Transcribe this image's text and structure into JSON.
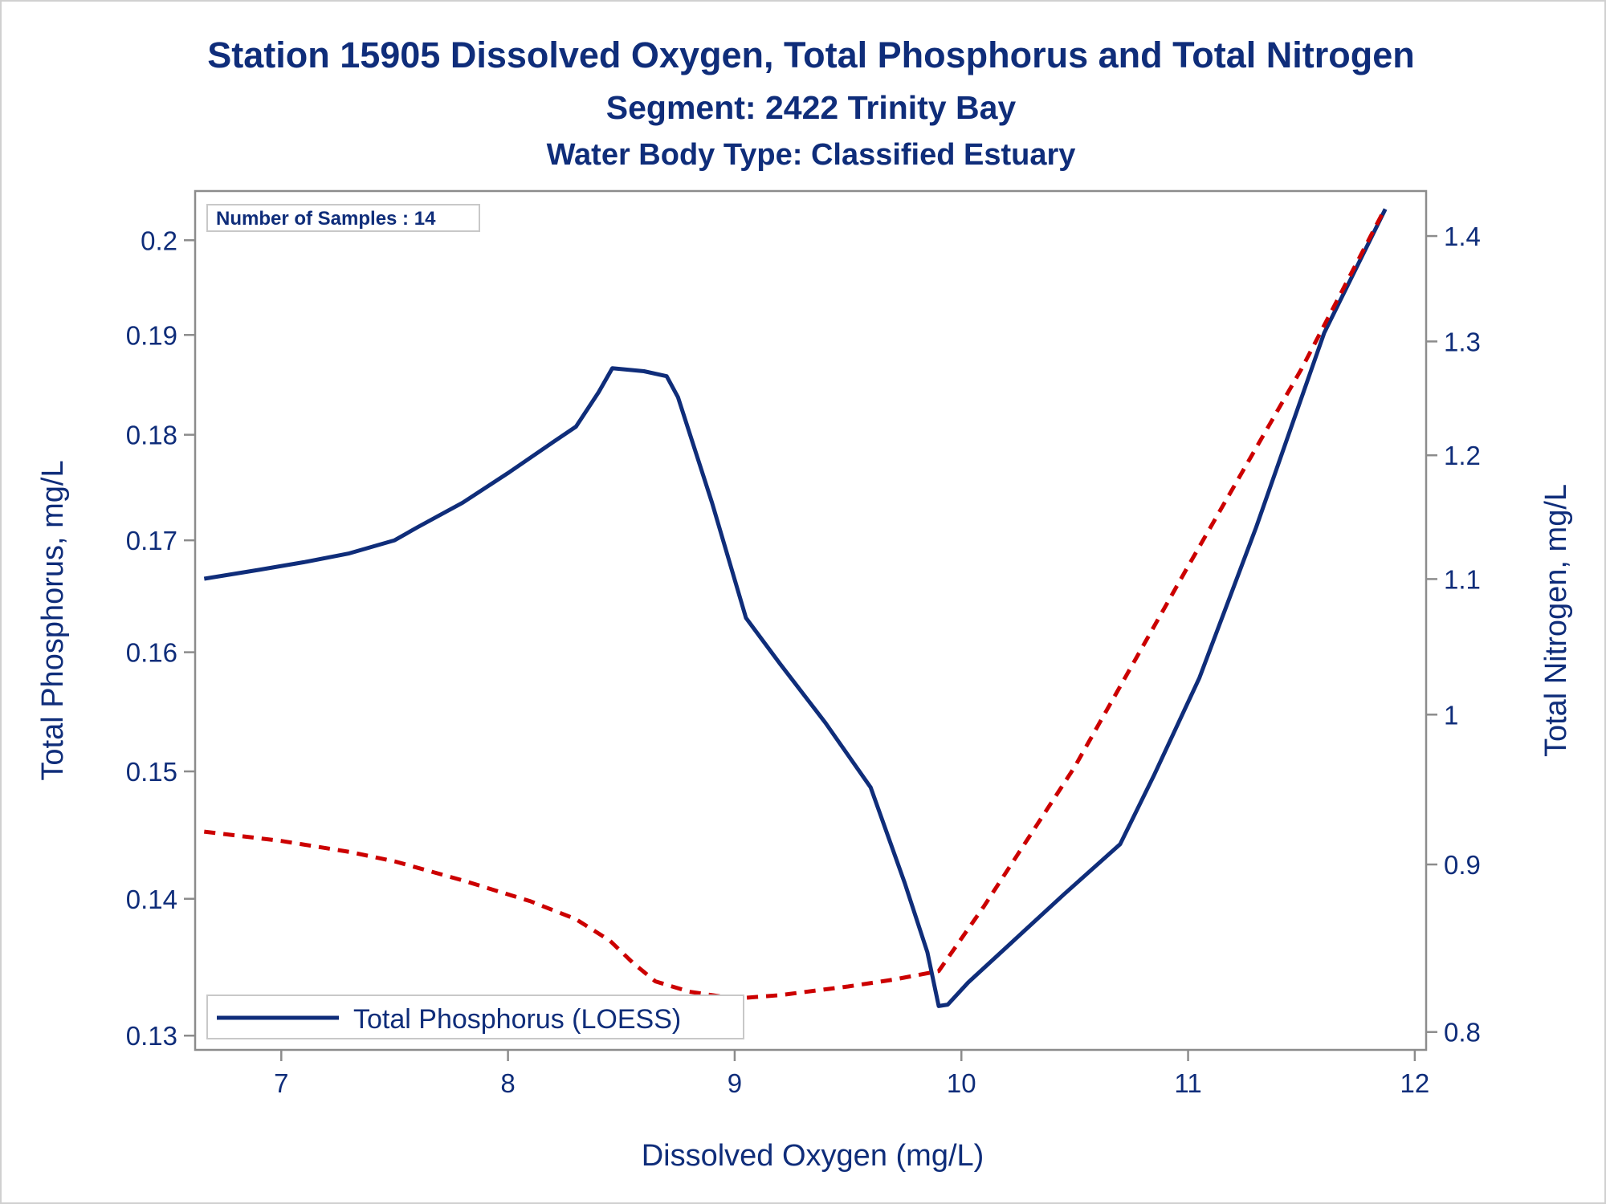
{
  "header": {
    "title": "Station 15905  Dissolved Oxygen, Total Phosphorus and Total Nitrogen",
    "subtitle1": "Segment: 2422  Trinity Bay",
    "subtitle2": "Water Body Type: Classified Estuary"
  },
  "note": "Number of Samples : 14",
  "legend": {
    "label": "Total Phosphorus (LOESS)"
  },
  "colors": {
    "text": "#0f2d7a",
    "phosphorus": "#0f2d7a",
    "nitrogen": "#cc0000",
    "axis": "#8c8c8c"
  },
  "chart_data": {
    "type": "line",
    "title": "Station 15905  Dissolved Oxygen, Total Phosphorus and Total Nitrogen",
    "xlabel": "Dissolved Oxygen (mg/L)",
    "ylabel": "Total Phosphorus, mg/L",
    "y2label": "Total Nitrogen, mg/L",
    "xlim": [
      6.62,
      12.05
    ],
    "x_ticks": [
      "7",
      "8",
      "9",
      "10",
      "11",
      "12"
    ],
    "y_ticks": [
      "0.13",
      "0.14",
      "0.15",
      "0.16",
      "0.17",
      "0.18",
      "0.19",
      "0.2"
    ],
    "y2_ticks": [
      "0.8",
      "0.9",
      "1",
      "1.1",
      "1.2",
      "1.3",
      "1.4"
    ],
    "y_scale": "log",
    "y2_scale": "log",
    "legend_position": "bottom-left",
    "grid": false,
    "series": [
      {
        "name": "Total Phosphorus (LOESS)",
        "axis": "left",
        "style": "solid",
        "points": [
          [
            6.66,
            0.1665
          ],
          [
            6.9,
            0.1673
          ],
          [
            7.1,
            0.168
          ],
          [
            7.3,
            0.1688
          ],
          [
            7.5,
            0.17
          ],
          [
            7.6,
            0.1712
          ],
          [
            7.8,
            0.1735
          ],
          [
            8.0,
            0.1763
          ],
          [
            8.2,
            0.1793
          ],
          [
            8.3,
            0.1808
          ],
          [
            8.4,
            0.1842
          ],
          [
            8.46,
            0.1866
          ],
          [
            8.6,
            0.1863
          ],
          [
            8.7,
            0.1858
          ],
          [
            8.75,
            0.1837
          ],
          [
            8.9,
            0.1735
          ],
          [
            9.05,
            0.163
          ],
          [
            9.2,
            0.159
          ],
          [
            9.4,
            0.154
          ],
          [
            9.6,
            0.1487
          ],
          [
            9.75,
            0.1412
          ],
          [
            9.85,
            0.136
          ],
          [
            9.9,
            0.1321
          ],
          [
            9.94,
            0.1322
          ],
          [
            10.03,
            0.1338
          ],
          [
            10.22,
            0.1367
          ],
          [
            10.45,
            0.1403
          ],
          [
            10.7,
            0.1442
          ],
          [
            10.85,
            0.1497
          ],
          [
            11.05,
            0.1578
          ],
          [
            11.3,
            0.1712
          ],
          [
            11.6,
            0.1902
          ],
          [
            11.87,
            0.2034
          ]
        ]
      },
      {
        "name": "",
        "axis": "right",
        "style": "dashed",
        "points": [
          [
            6.66,
            0.921
          ],
          [
            7.0,
            0.915
          ],
          [
            7.3,
            0.908
          ],
          [
            7.5,
            0.902
          ],
          [
            7.8,
            0.89
          ],
          [
            8.1,
            0.877
          ],
          [
            8.3,
            0.866
          ],
          [
            8.45,
            0.853
          ],
          [
            8.55,
            0.84
          ],
          [
            8.65,
            0.829
          ],
          [
            8.8,
            0.823
          ],
          [
            9.0,
            0.819
          ],
          [
            9.2,
            0.821
          ],
          [
            9.5,
            0.826
          ],
          [
            9.7,
            0.83
          ],
          [
            9.9,
            0.835
          ],
          [
            10.1,
            0.874
          ],
          [
            10.5,
            0.964
          ],
          [
            11.0,
            1.11
          ],
          [
            11.5,
            1.275
          ],
          [
            11.87,
            1.428
          ]
        ]
      }
    ]
  }
}
